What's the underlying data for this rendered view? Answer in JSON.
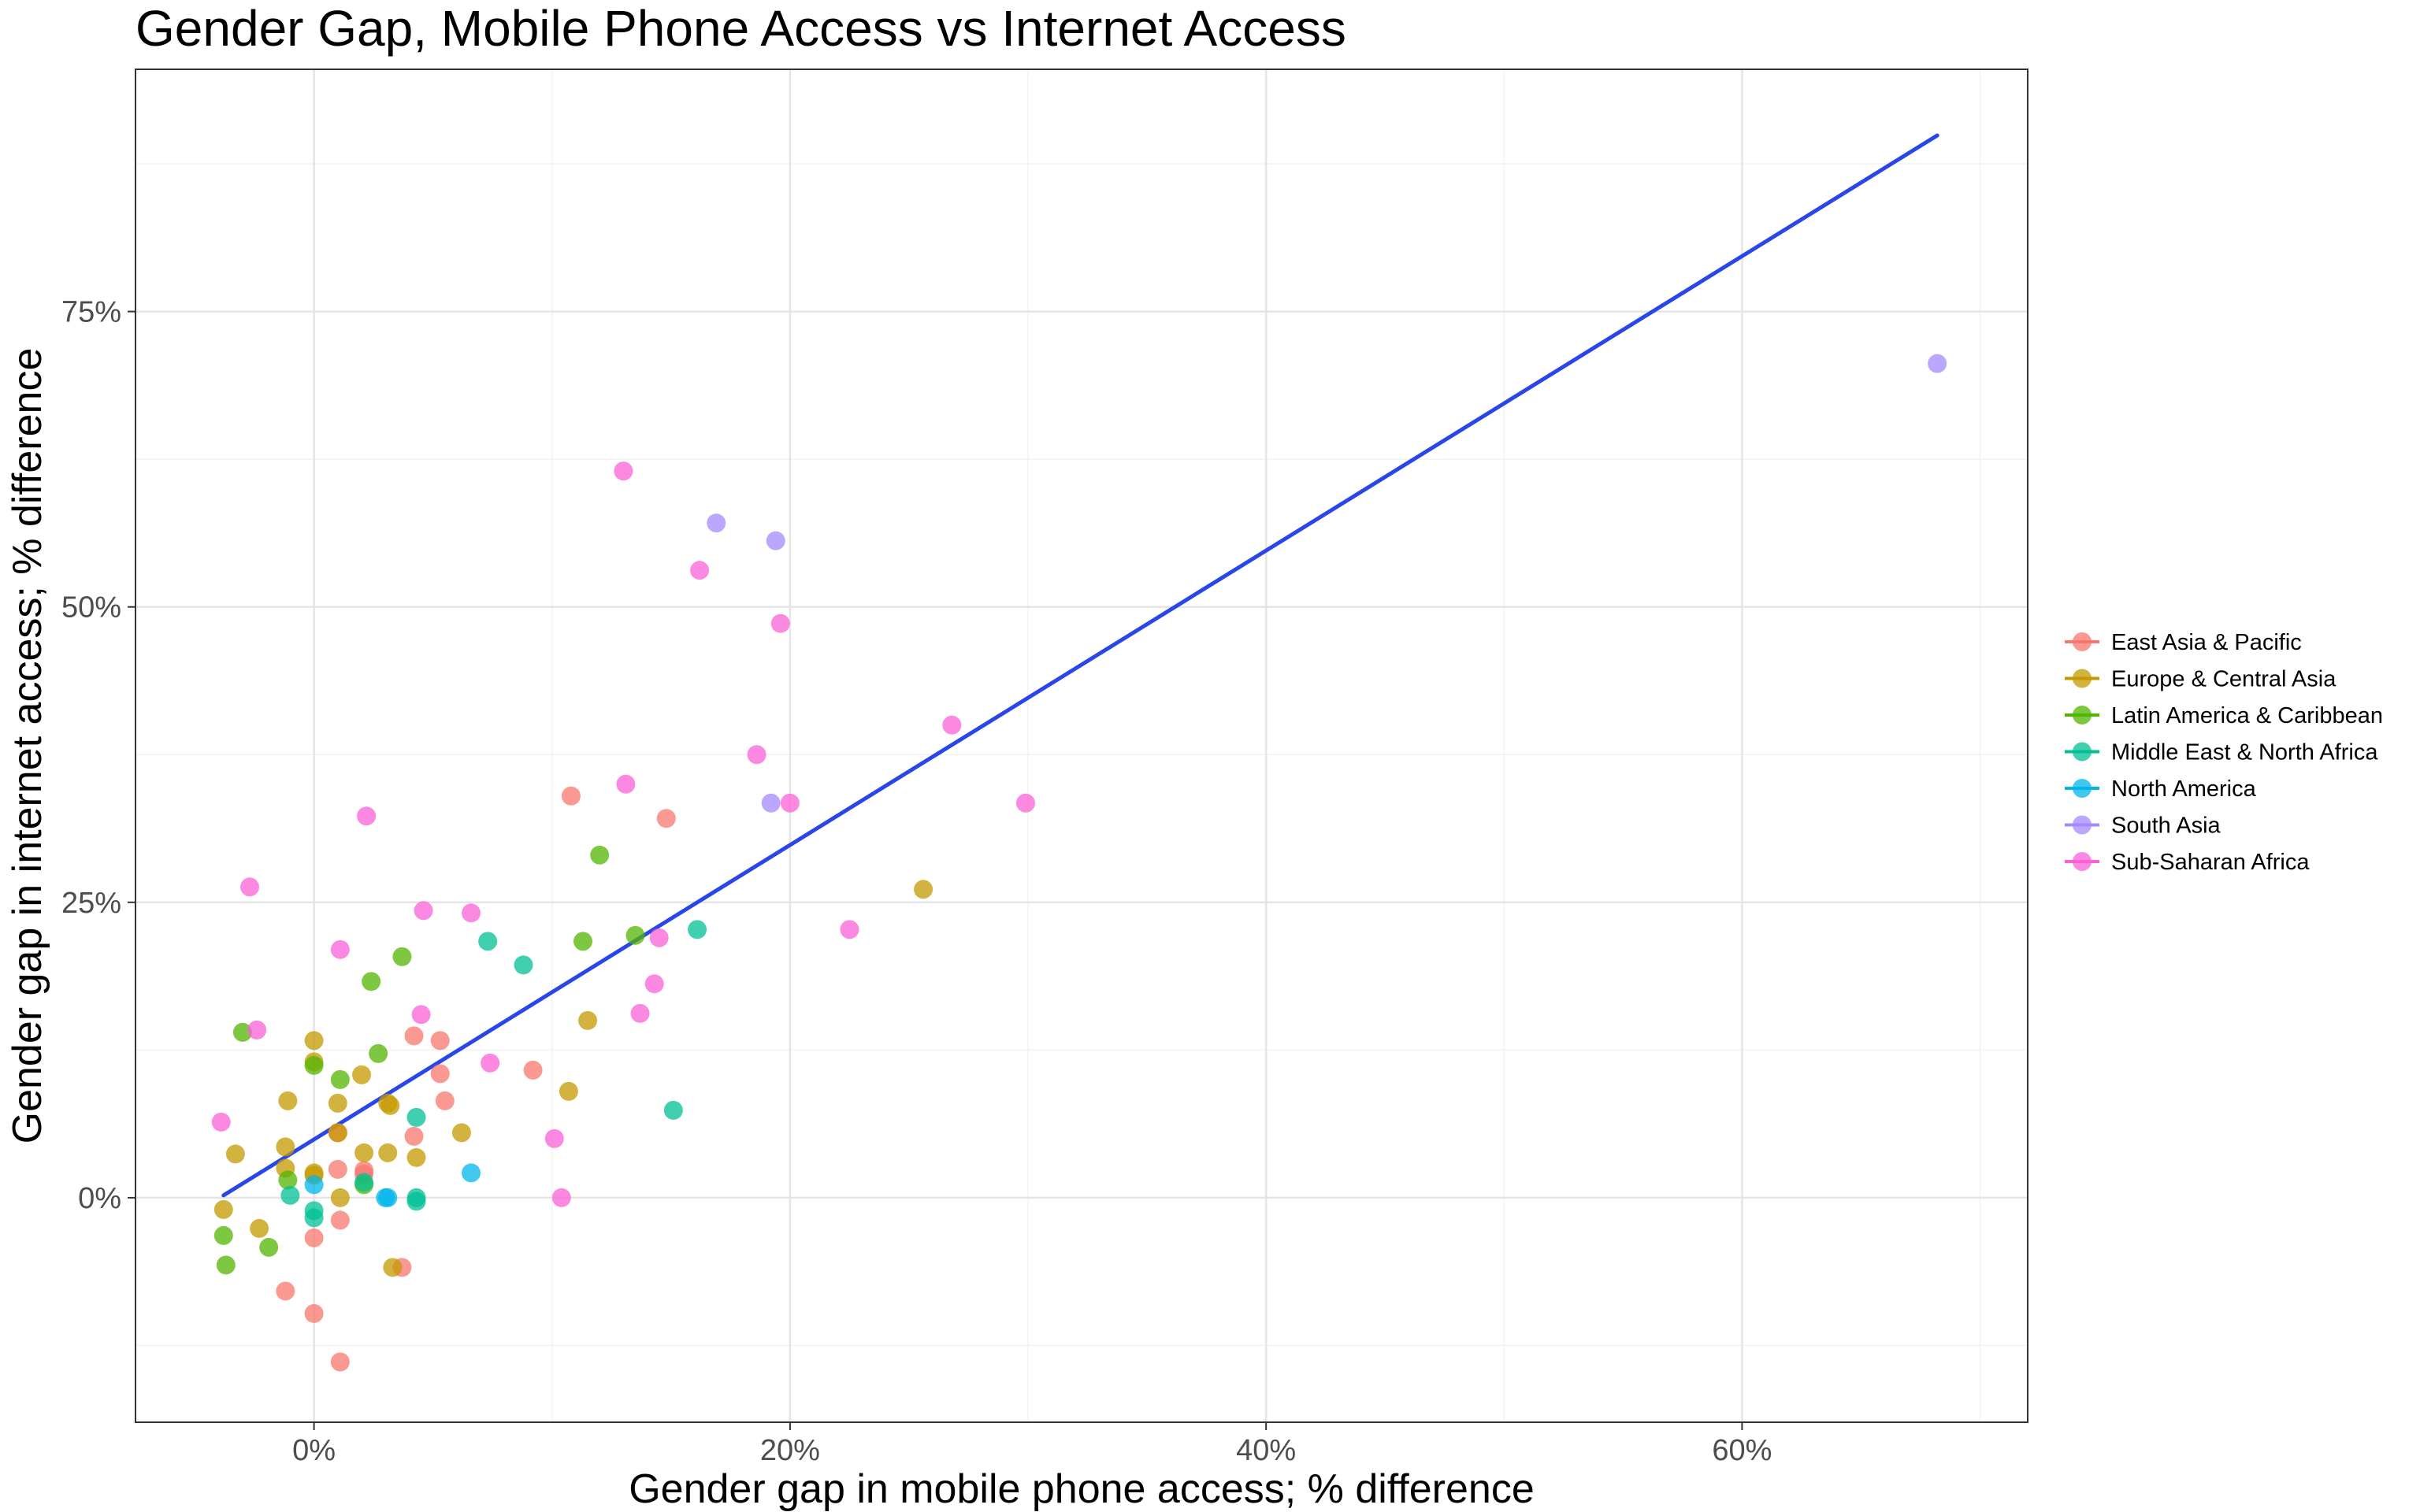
{
  "chart_data": {
    "type": "scatter",
    "title": "Gender Gap, Mobile Phone Access vs Internet Access",
    "xlabel": "Gender gap in mobile phone access; % difference",
    "ylabel": "Gender gap in internet access; % difference",
    "xlim": [
      -0.075,
      0.72
    ],
    "ylim": [
      -0.19,
      0.955
    ],
    "x_ticks": [
      0,
      0.2,
      0.4,
      0.6
    ],
    "x_tick_labels": [
      "0%",
      "20%",
      "40%",
      "60%"
    ],
    "y_ticks": [
      0,
      0.25,
      0.5,
      0.75
    ],
    "y_tick_labels": [
      "0%",
      "25%",
      "50%",
      "75%"
    ],
    "grid": true,
    "legend_position": "right",
    "trend_line": {
      "color": "#2947e8",
      "x": [
        -0.038,
        0.682
      ],
      "y": [
        0.002,
        0.899
      ]
    },
    "series": [
      {
        "name": "East Asia & Pacific",
        "color": "#f8766d",
        "points": [
          [
            0.0,
            -0.098
          ],
          [
            0.011,
            -0.139
          ],
          [
            -0.012,
            -0.079
          ],
          [
            0.0,
            -0.034
          ],
          [
            0.011,
            -0.019
          ],
          [
            0.037,
            -0.059
          ],
          [
            0.021,
            0.02
          ],
          [
            0.021,
            0.023
          ],
          [
            0.01,
            0.024
          ],
          [
            0.01,
            0.055
          ],
          [
            0.042,
            0.052
          ],
          [
            0.053,
            0.105
          ],
          [
            0.055,
            0.082
          ],
          [
            0.053,
            0.133
          ],
          [
            0.042,
            0.137
          ],
          [
            0.092,
            0.108
          ],
          [
            0.108,
            0.34
          ],
          [
            0.148,
            0.321
          ]
        ]
      },
      {
        "name": "Europe & Central Asia",
        "color": "#c49a00",
        "points": [
          [
            -0.038,
            -0.01
          ],
          [
            -0.023,
            -0.026
          ],
          [
            -0.033,
            0.037
          ],
          [
            -0.012,
            0.043
          ],
          [
            -0.012,
            0.025
          ],
          [
            -0.011,
            0.082
          ],
          [
            0.0,
            0.115
          ],
          [
            0.0,
            0.133
          ],
          [
            0.0,
            0.021
          ],
          [
            0.0,
            0.019
          ],
          [
            0.011,
            0.0
          ],
          [
            0.01,
            0.055
          ],
          [
            0.01,
            0.08
          ],
          [
            0.02,
            0.104
          ],
          [
            0.021,
            0.038
          ],
          [
            0.031,
            0.08
          ],
          [
            0.032,
            0.078
          ],
          [
            0.031,
            0.038
          ],
          [
            0.043,
            0.034
          ],
          [
            0.062,
            0.055
          ],
          [
            0.033,
            -0.059
          ],
          [
            0.107,
            0.09
          ],
          [
            0.115,
            0.15
          ],
          [
            0.256,
            0.261
          ]
        ]
      },
      {
        "name": "Latin America & Caribbean",
        "color": "#53b400",
        "points": [
          [
            -0.038,
            -0.032
          ],
          [
            -0.037,
            -0.057
          ],
          [
            -0.019,
            -0.042
          ],
          [
            -0.011,
            0.015
          ],
          [
            -0.03,
            0.14
          ],
          [
            0.0,
            0.112
          ],
          [
            0.011,
            0.1
          ],
          [
            0.021,
            0.011
          ],
          [
            0.024,
            0.183
          ],
          [
            0.027,
            0.122
          ],
          [
            0.037,
            0.204
          ],
          [
            0.113,
            0.217
          ],
          [
            0.135,
            0.222
          ],
          [
            0.12,
            0.29
          ]
        ]
      },
      {
        "name": "Middle East & North Africa",
        "color": "#00c094",
        "points": [
          [
            -0.01,
            0.002
          ],
          [
            0.0,
            -0.011
          ],
          [
            0.0,
            -0.017
          ],
          [
            0.021,
            0.013
          ],
          [
            0.043,
            0.0
          ],
          [
            0.043,
            -0.003
          ],
          [
            0.043,
            0.068
          ],
          [
            0.073,
            0.217
          ],
          [
            0.088,
            0.197
          ],
          [
            0.151,
            0.074
          ],
          [
            0.161,
            0.227
          ]
        ]
      },
      {
        "name": "North America",
        "color": "#00b6eb",
        "points": [
          [
            0.0,
            0.011
          ],
          [
            0.03,
            0.0
          ],
          [
            0.031,
            0.0
          ],
          [
            0.066,
            0.021
          ]
        ]
      },
      {
        "name": "South Asia",
        "color": "#a58aff",
        "points": [
          [
            0.169,
            0.571
          ],
          [
            0.194,
            0.556
          ],
          [
            0.192,
            0.334
          ],
          [
            0.682,
            0.706
          ]
        ]
      },
      {
        "name": "Sub-Saharan Africa",
        "color": "#fb61d7",
        "points": [
          [
            -0.039,
            0.064
          ],
          [
            -0.027,
            0.263
          ],
          [
            -0.024,
            0.142
          ],
          [
            0.011,
            0.21
          ],
          [
            0.022,
            0.323
          ],
          [
            0.045,
            0.155
          ],
          [
            0.046,
            0.243
          ],
          [
            0.066,
            0.241
          ],
          [
            0.074,
            0.114
          ],
          [
            0.101,
            0.05
          ],
          [
            0.104,
            0.0
          ],
          [
            0.13,
            0.615
          ],
          [
            0.131,
            0.35
          ],
          [
            0.137,
            0.156
          ],
          [
            0.143,
            0.181
          ],
          [
            0.145,
            0.22
          ],
          [
            0.162,
            0.531
          ],
          [
            0.186,
            0.375
          ],
          [
            0.196,
            0.486
          ],
          [
            0.2,
            0.334
          ],
          [
            0.225,
            0.227
          ],
          [
            0.268,
            0.4
          ],
          [
            0.299,
            0.334
          ]
        ]
      }
    ]
  }
}
